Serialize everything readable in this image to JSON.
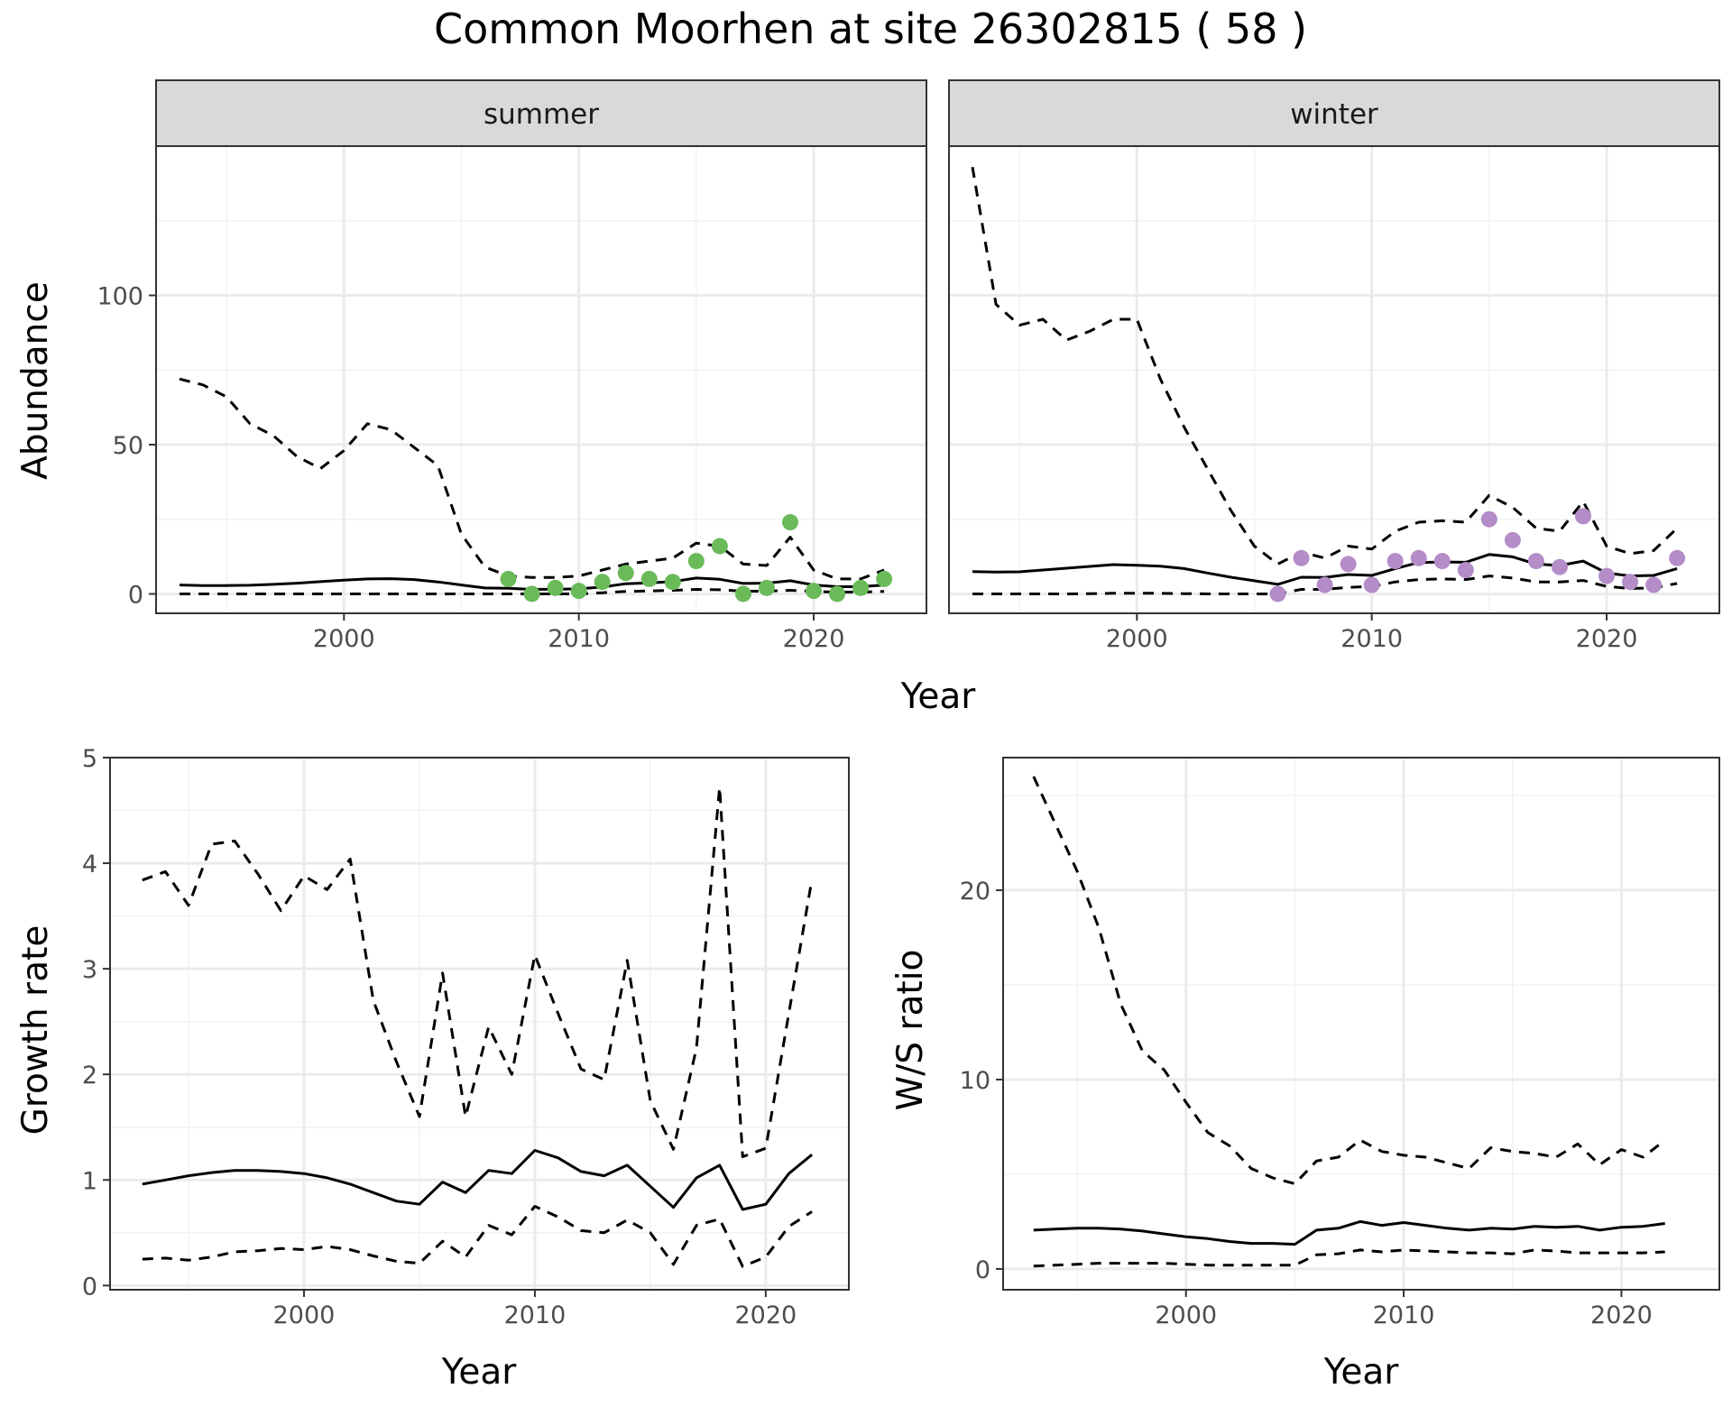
{
  "title": "Common Moorhen at site 26302815 ( 58 )",
  "colors": {
    "summer_points": "#6aba5a",
    "winter_points": "#b48cc8",
    "lines": "#000000",
    "grid": "#ebebeb",
    "strip": "#d9d9d9"
  },
  "chart_data": [
    {
      "id": "summer",
      "type": "line",
      "facet_label": "summer",
      "ylabel": "Abundance",
      "xlabel": "Year",
      "xlim": [
        1992,
        2024.8
      ],
      "ylim": [
        -6.5,
        150
      ],
      "xticks": [
        2000,
        2010,
        2020
      ],
      "yticks": [
        0,
        50,
        100
      ],
      "grid": true,
      "series": [
        {
          "style": "solid",
          "x": [
            1993,
            1994,
            1995,
            1996,
            1997,
            1998,
            1999,
            2000,
            2001,
            2002,
            2003,
            2004,
            2005,
            2006,
            2007,
            2008,
            2009,
            2010,
            2011,
            2012,
            2013,
            2014,
            2015,
            2016,
            2017,
            2018,
            2019,
            2020,
            2021,
            2022,
            2023
          ],
          "y": [
            3,
            2.8,
            2.8,
            2.9,
            3.2,
            3.6,
            4.1,
            4.6,
            5,
            5.1,
            4.8,
            4,
            3,
            2,
            1.9,
            1.5,
            1.6,
            1.7,
            2.3,
            3.4,
            3.7,
            4.1,
            5.3,
            4.9,
            3.5,
            3.6,
            4.4,
            3,
            2.4,
            2.4,
            3
          ]
        },
        {
          "style": "dashed",
          "x": [
            1993,
            1994,
            1995,
            1996,
            1997,
            1998,
            1999,
            2000,
            2001,
            2002,
            2003,
            2004,
            2005,
            2006,
            2007,
            2008,
            2009,
            2010,
            2011,
            2012,
            2013,
            2014,
            2015,
            2016,
            2017,
            2018,
            2019,
            2020,
            2021,
            2022,
            2023
          ],
          "y": [
            72,
            70,
            66,
            57,
            53,
            46,
            42,
            48,
            57,
            55,
            49,
            43,
            20,
            9,
            6,
            5.5,
            5.5,
            6,
            8,
            10,
            11,
            12,
            17,
            16,
            10,
            9.5,
            19,
            8,
            5,
            5,
            8
          ]
        },
        {
          "style": "dashed",
          "x": [
            1993,
            1994,
            1995,
            1996,
            1997,
            1998,
            1999,
            2000,
            2001,
            2002,
            2003,
            2004,
            2005,
            2006,
            2007,
            2008,
            2009,
            2010,
            2011,
            2012,
            2013,
            2014,
            2015,
            2016,
            2017,
            2018,
            2019,
            2020,
            2021,
            2022,
            2023
          ],
          "y": [
            0,
            0,
            0,
            0,
            0,
            0,
            0,
            0,
            0,
            0,
            0,
            0,
            0,
            0,
            0,
            0,
            0,
            0,
            0.4,
            0.8,
            1,
            1.2,
            1.5,
            1.4,
            0.9,
            0.9,
            1.2,
            0.8,
            0.6,
            0.6,
            0.8
          ]
        }
      ],
      "points": {
        "x": [
          2007,
          2008,
          2009,
          2010,
          2011,
          2012,
          2013,
          2014,
          2015,
          2016,
          2017,
          2018,
          2019,
          2020,
          2021,
          2022,
          2023
        ],
        "y": [
          5,
          0,
          2,
          1,
          4,
          7,
          5,
          4,
          11,
          16,
          0,
          2,
          24,
          1,
          0,
          2,
          5
        ]
      }
    },
    {
      "id": "winter",
      "type": "line",
      "facet_label": "winter",
      "ylabel": "",
      "xlabel": "Year",
      "xlim": [
        1992,
        2024.8
      ],
      "ylim": [
        -6.5,
        150
      ],
      "xticks": [
        2000,
        2010,
        2020
      ],
      "yticks": [
        0,
        50,
        100
      ],
      "grid": true,
      "series": [
        {
          "style": "solid",
          "x": [
            1993,
            1994,
            1995,
            1996,
            1997,
            1998,
            1999,
            2000,
            2001,
            2002,
            2003,
            2004,
            2005,
            2006,
            2007,
            2008,
            2009,
            2010,
            2011,
            2012,
            2013,
            2014,
            2015,
            2016,
            2017,
            2018,
            2019,
            2020,
            2021,
            2022,
            2023
          ],
          "y": [
            7.5,
            7.3,
            7.4,
            8,
            8.6,
            9.2,
            9.8,
            9.6,
            9.3,
            8.5,
            7,
            5.6,
            4.4,
            3.2,
            5.6,
            5.5,
            6.5,
            6.2,
            8.5,
            10.5,
            10.7,
            10.6,
            13.2,
            12.4,
            10,
            9.5,
            11,
            7,
            6,
            6.2,
            8.5
          ]
        },
        {
          "style": "dashed",
          "x": [
            1993,
            1994,
            1995,
            1996,
            1997,
            1998,
            1999,
            2000,
            2001,
            2002,
            2003,
            2004,
            2005,
            2006,
            2007,
            2008,
            2009,
            2010,
            2011,
            2012,
            2013,
            2014,
            2015,
            2016,
            2017,
            2018,
            2019,
            2020,
            2021,
            2022,
            2023
          ],
          "y": [
            143,
            97,
            90,
            92,
            85,
            88,
            92,
            92,
            72,
            56,
            42,
            28,
            16,
            10,
            14,
            12,
            16,
            15,
            21,
            24,
            24.5,
            24,
            33,
            29,
            22,
            21,
            31,
            16,
            13.5,
            14.5,
            22
          ]
        },
        {
          "style": "dashed",
          "x": [
            1993,
            1994,
            1995,
            1996,
            1997,
            1998,
            1999,
            2000,
            2001,
            2002,
            2003,
            2004,
            2005,
            2006,
            2007,
            2008,
            2009,
            2010,
            2011,
            2012,
            2013,
            2014,
            2015,
            2016,
            2017,
            2018,
            2019,
            2020,
            2021,
            2022,
            2023
          ],
          "y": [
            0,
            0,
            0,
            0,
            0,
            0.1,
            0.2,
            0.2,
            0.2,
            0.1,
            0,
            0,
            0,
            0,
            1.5,
            1.5,
            2.2,
            2.5,
            4,
            4.8,
            5,
            4.8,
            6,
            5.3,
            4,
            4,
            4.5,
            2.5,
            1.8,
            2,
            3.5
          ]
        }
      ],
      "points": {
        "x": [
          2006,
          2007,
          2008,
          2009,
          2010,
          2011,
          2012,
          2013,
          2014,
          2015,
          2016,
          2017,
          2018,
          2019,
          2020,
          2021,
          2022,
          2023
        ],
        "y": [
          0,
          12,
          3,
          10,
          3,
          11,
          12,
          11,
          8,
          25,
          18,
          11,
          9,
          26,
          6,
          4,
          3,
          12
        ]
      }
    },
    {
      "id": "growth",
      "type": "line",
      "ylabel": "Growth rate",
      "xlabel": "Year",
      "xlim": [
        1991.6,
        2023.6
      ],
      "ylim": [
        -0.04,
        5
      ],
      "xticks": [
        2000,
        2010,
        2020
      ],
      "yticks": [
        0,
        1,
        2,
        3,
        4,
        5
      ],
      "grid": true,
      "series": [
        {
          "style": "solid",
          "x": [
            1993,
            1994,
            1995,
            1996,
            1997,
            1998,
            1999,
            2000,
            2001,
            2002,
            2003,
            2004,
            2005,
            2006,
            2007,
            2008,
            2009,
            2010,
            2011,
            2012,
            2013,
            2014,
            2015,
            2016,
            2017,
            2018,
            2019,
            2020,
            2021,
            2022
          ],
          "y": [
            0.96,
            1,
            1.04,
            1.07,
            1.09,
            1.09,
            1.08,
            1.06,
            1.02,
            0.96,
            0.88,
            0.8,
            0.77,
            0.98,
            0.88,
            1.09,
            1.06,
            1.28,
            1.21,
            1.08,
            1.04,
            1.14,
            0.94,
            0.74,
            1.02,
            1.14,
            0.72,
            0.77,
            1.06,
            1.24
          ]
        },
        {
          "style": "dashed",
          "x": [
            1993,
            1994,
            1995,
            1996,
            1997,
            1998,
            1999,
            2000,
            2001,
            2002,
            2003,
            2004,
            2005,
            2006,
            2007,
            2008,
            2009,
            2010,
            2011,
            2012,
            2013,
            2014,
            2015,
            2016,
            2017,
            2018,
            2019,
            2020,
            2021,
            2022
          ],
          "y": [
            3.84,
            3.92,
            3.6,
            4.18,
            4.21,
            3.9,
            3.55,
            3.88,
            3.75,
            4.04,
            2.7,
            2.12,
            1.6,
            2.96,
            1.6,
            2.45,
            2,
            3.13,
            2.58,
            2.05,
            1.95,
            3.08,
            1.75,
            1.29,
            2.25,
            4.72,
            1.22,
            1.3,
            2.58,
            3.85
          ]
        },
        {
          "style": "dashed",
          "x": [
            1993,
            1994,
            1995,
            1996,
            1997,
            1998,
            1999,
            2000,
            2001,
            2002,
            2003,
            2004,
            2005,
            2006,
            2007,
            2008,
            2009,
            2010,
            2011,
            2012,
            2013,
            2014,
            2015,
            2016,
            2017,
            2018,
            2019,
            2020,
            2021,
            2022
          ],
          "y": [
            0.25,
            0.26,
            0.24,
            0.27,
            0.32,
            0.33,
            0.35,
            0.34,
            0.37,
            0.34,
            0.28,
            0.23,
            0.21,
            0.42,
            0.27,
            0.57,
            0.48,
            0.75,
            0.65,
            0.52,
            0.5,
            0.62,
            0.5,
            0.2,
            0.57,
            0.63,
            0.18,
            0.27,
            0.56,
            0.7
          ]
        }
      ]
    },
    {
      "id": "ratio",
      "type": "line",
      "ylabel": "W/S ratio",
      "xlabel": "Year",
      "xlim": [
        1991.6,
        2024.5
      ],
      "ylim": [
        -1.1,
        27
      ],
      "xticks": [
        2000,
        2010,
        2020
      ],
      "yticks": [
        0,
        10,
        20
      ],
      "grid": true,
      "series": [
        {
          "style": "solid",
          "x": [
            1993,
            1994,
            1995,
            1996,
            1997,
            1998,
            1999,
            2000,
            2001,
            2002,
            2003,
            2004,
            2005,
            2006,
            2007,
            2008,
            2009,
            2010,
            2011,
            2012,
            2013,
            2014,
            2015,
            2016,
            2017,
            2018,
            2019,
            2020,
            2021,
            2022
          ],
          "y": [
            2.05,
            2.1,
            2.15,
            2.15,
            2.1,
            2,
            1.85,
            1.7,
            1.6,
            1.45,
            1.35,
            1.35,
            1.3,
            2.05,
            2.15,
            2.5,
            2.3,
            2.45,
            2.3,
            2.15,
            2.05,
            2.15,
            2.1,
            2.25,
            2.2,
            2.25,
            2.05,
            2.2,
            2.25,
            2.4
          ]
        },
        {
          "style": "dashed",
          "x": [
            1993,
            1994,
            1995,
            1996,
            1997,
            1998,
            1999,
            2000,
            2001,
            2002,
            2003,
            2004,
            2005,
            2006,
            2007,
            2008,
            2009,
            2010,
            2011,
            2012,
            2013,
            2014,
            2015,
            2016,
            2017,
            2018,
            2019,
            2020,
            2021,
            2022
          ],
          "y": [
            26,
            23.5,
            21,
            18,
            14,
            11.5,
            10.5,
            8.8,
            7.2,
            6.5,
            5.3,
            4.8,
            4.5,
            5.7,
            5.9,
            6.8,
            6.2,
            6,
            5.9,
            5.6,
            5.3,
            6.4,
            6.2,
            6.1,
            5.9,
            6.6,
            5.5,
            6.3,
            5.9,
            6.8
          ]
        },
        {
          "style": "dashed",
          "x": [
            1993,
            1994,
            1995,
            1996,
            1997,
            1998,
            1999,
            2000,
            2001,
            2002,
            2003,
            2004,
            2005,
            2006,
            2007,
            2008,
            2009,
            2010,
            2011,
            2012,
            2013,
            2014,
            2015,
            2016,
            2017,
            2018,
            2019,
            2020,
            2021,
            2022
          ],
          "y": [
            0.15,
            0.2,
            0.25,
            0.3,
            0.3,
            0.3,
            0.3,
            0.25,
            0.2,
            0.2,
            0.2,
            0.2,
            0.2,
            0.75,
            0.8,
            1,
            0.9,
            1,
            0.95,
            0.9,
            0.85,
            0.85,
            0.8,
            1,
            0.95,
            0.85,
            0.85,
            0.85,
            0.85,
            0.9
          ]
        }
      ]
    }
  ]
}
